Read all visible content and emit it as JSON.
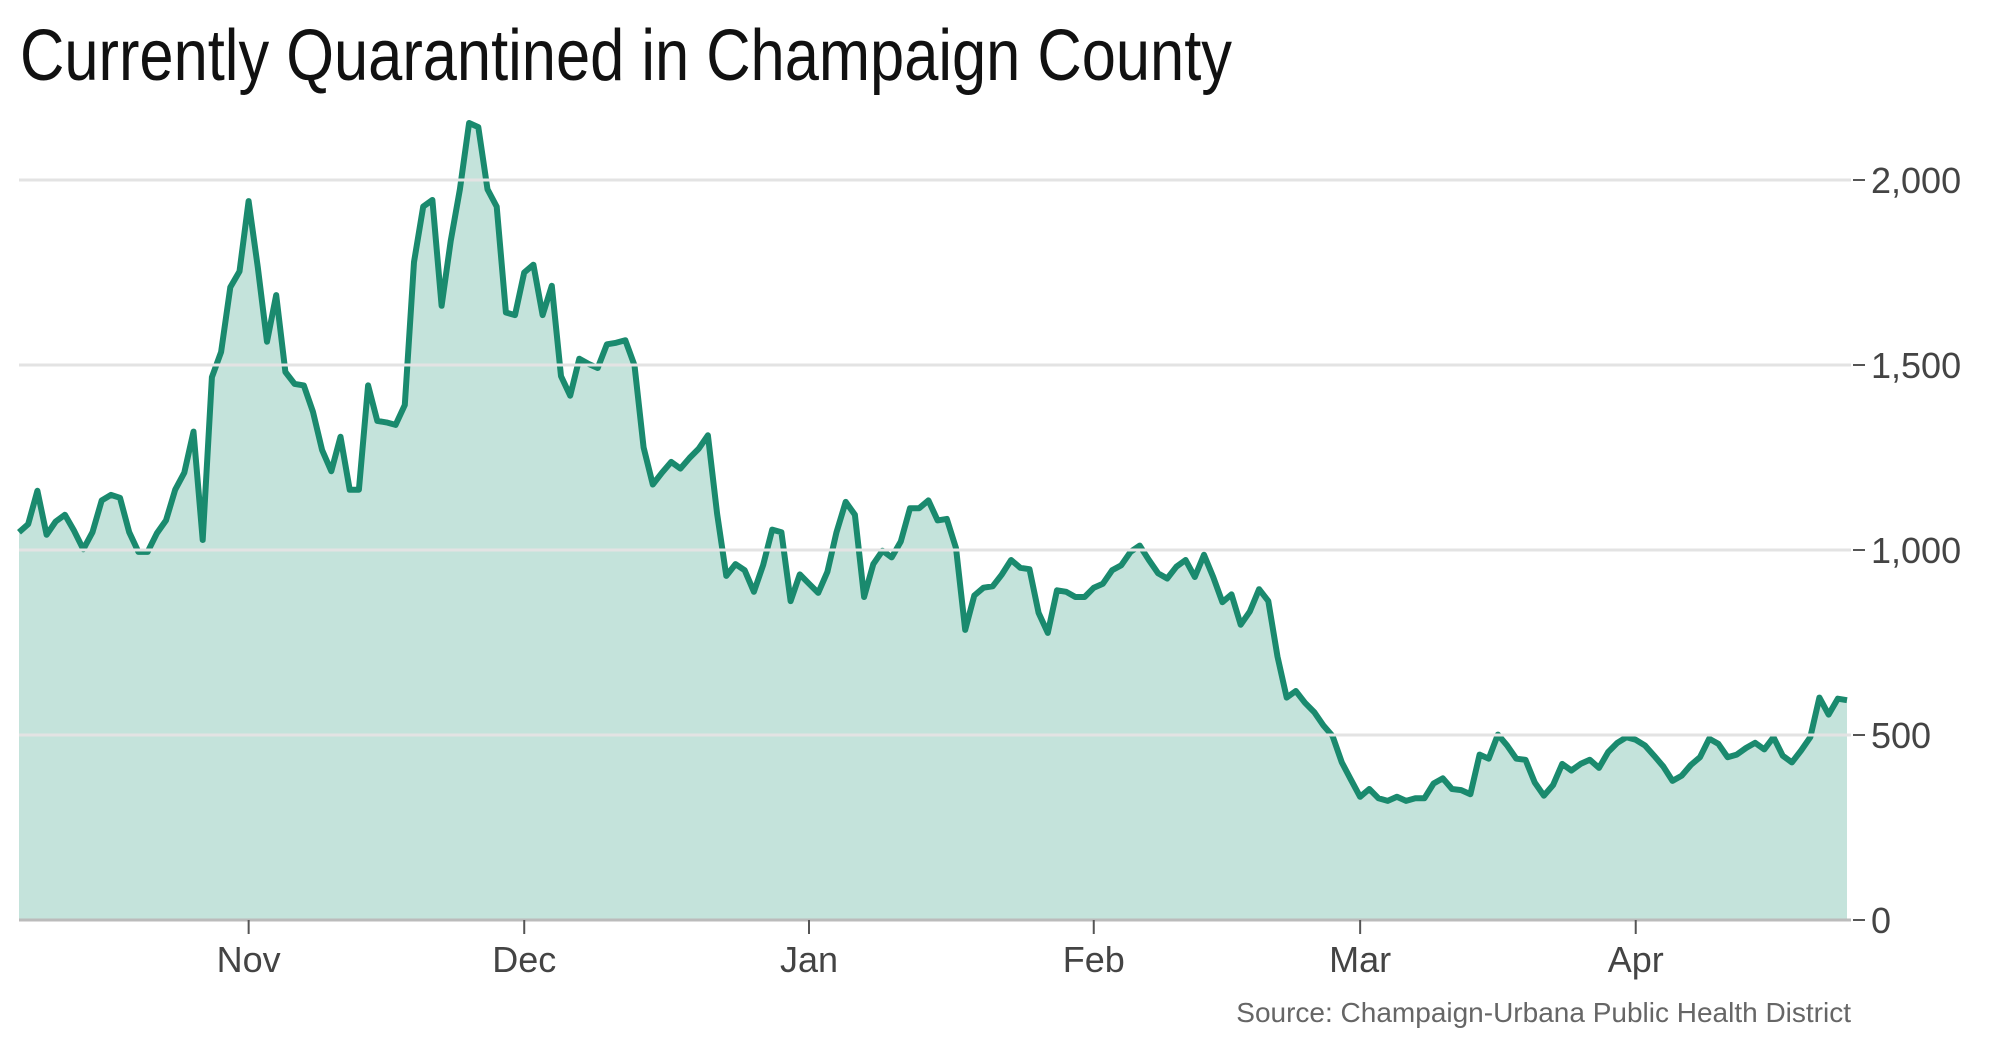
{
  "chart_data": {
    "type": "area",
    "title": "Currently Quarantined in Champaign County",
    "source": "Source: Champaign-Urbana Public Health District",
    "color": "#1a8a6e",
    "fill": "#c4e3db",
    "grid": true,
    "y_axis_side": "right",
    "categories": [
      null,
      null,
      null,
      null,
      null,
      null,
      null,
      null,
      null,
      null,
      null,
      null,
      null,
      null,
      null,
      null,
      null,
      null,
      null,
      null,
      null,
      null,
      null,
      null,
      null,
      "Nov",
      null,
      null,
      null,
      null,
      null,
      null,
      null,
      null,
      null,
      null,
      null,
      null,
      null,
      null,
      null,
      null,
      null,
      null,
      null,
      null,
      null,
      null,
      null,
      null,
      null,
      null,
      null,
      null,
      null,
      "Dec",
      null,
      null,
      null,
      null,
      null,
      null,
      null,
      null,
      null,
      null,
      null,
      null,
      null,
      null,
      null,
      null,
      null,
      null,
      null,
      null,
      null,
      null,
      null,
      null,
      null,
      null,
      null,
      null,
      null,
      null,
      "Jan",
      null,
      null,
      null,
      null,
      null,
      null,
      null,
      null,
      null,
      null,
      null,
      null,
      null,
      null,
      null,
      null,
      null,
      null,
      null,
      null,
      null,
      null,
      null,
      null,
      null,
      null,
      null,
      null,
      null,
      null,
      "Feb",
      null,
      null,
      null,
      null,
      null,
      null,
      null,
      null,
      null,
      null,
      null,
      null,
      null,
      null,
      null,
      null,
      null,
      null,
      null,
      null,
      null,
      null,
      null,
      null,
      null,
      null,
      null,
      null,
      "Mar",
      null,
      null,
      null,
      null,
      null,
      null,
      null,
      null,
      null,
      null,
      null,
      null,
      null,
      null,
      null,
      null,
      null,
      null,
      null,
      null,
      null,
      null,
      null,
      null,
      null,
      null,
      null,
      null,
      null,
      "Apr",
      null,
      null,
      null,
      null,
      null,
      null,
      null,
      null,
      null,
      null,
      null,
      null,
      null,
      null,
      null,
      null,
      null,
      null,
      null,
      null,
      null,
      null,
      null
    ],
    "values": [
      1048,
      1070,
      1160,
      1041,
      1077,
      1095,
      1052,
      1002,
      1048,
      1134,
      1149,
      1141,
      1048,
      995,
      995,
      1045,
      1080,
      1163,
      1209,
      1320,
      1027,
      1467,
      1535,
      1710,
      1753,
      1943,
      1764,
      1563,
      1689,
      1481,
      1449,
      1445,
      1374,
      1270,
      1213,
      1306,
      1163,
      1163,
      1445,
      1349,
      1345,
      1338,
      1392,
      1778,
      1928,
      1946,
      1660,
      1835,
      1975,
      2154,
      2143,
      1975,
      1928,
      1642,
      1635,
      1750,
      1771,
      1635,
      1714,
      1470,
      1417,
      1517,
      1503,
      1492,
      1556,
      1560,
      1567,
      1499,
      1277,
      1177,
      1209,
      1238,
      1220,
      1249,
      1274,
      1310,
      1098,
      930,
      962,
      945,
      887,
      959,
      1055,
      1048,
      862,
      934,
      909,
      884,
      941,
      1048,
      1130,
      1095,
      873,
      962,
      998,
      980,
      1023,
      1113,
      1113,
      1134,
      1080,
      1084,
      1005,
      784,
      877,
      898,
      902,
      934,
      973,
      952,
      948,
      830,
      776,
      891,
      887,
      873,
      873,
      898,
      909,
      945,
      959,
      995,
      1012,
      973,
      937,
      923,
      955,
      973,
      927,
      987,
      927,
      859,
      880,
      798,
      834,
      894,
      862,
      712,
      601,
      619,
      587,
      562,
      526,
      497,
      426,
      379,
      333,
      354,
      329,
      322,
      333,
      322,
      329,
      329,
      369,
      383,
      354,
      351,
      340,
      447,
      436,
      501,
      472,
      436,
      433,
      372,
      336,
      365,
      422,
      404,
      422,
      433,
      411,
      454,
      479,
      494,
      487,
      472,
      444,
      415,
      376,
      390,
      419,
      440,
      490,
      476,
      440,
      447,
      465,
      479,
      461,
      494,
      444,
      426,
      458,
      494,
      601,
      555,
      598,
      594
    ],
    "ylim": [
      0,
      2200
    ],
    "yticks": [
      0,
      500,
      {
        "value": 1000,
        "label": "1,000"
      },
      {
        "value": 1500,
        "label": "1,500"
      },
      {
        "value": 2000,
        "label": "2,000"
      }
    ]
  }
}
